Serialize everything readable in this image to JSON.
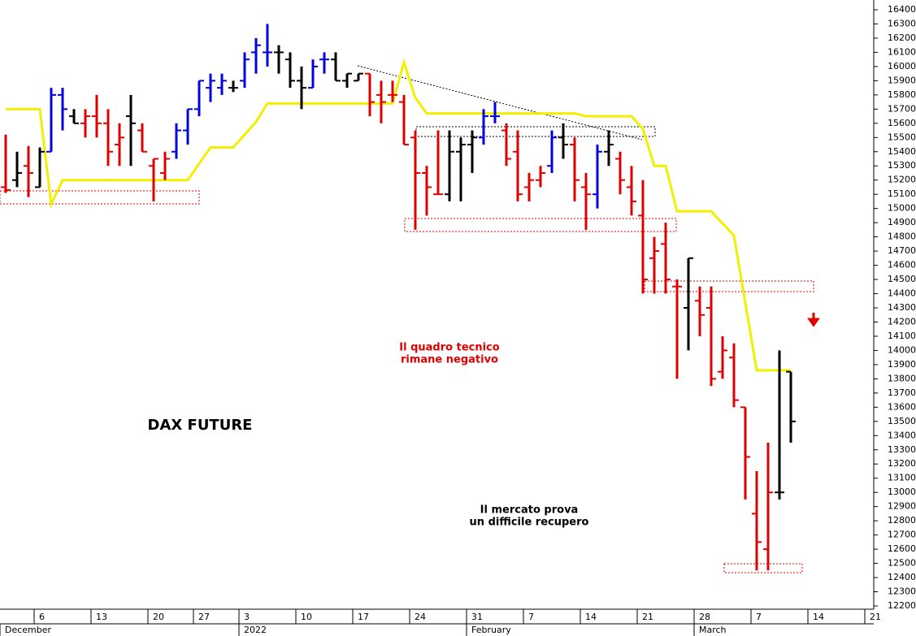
{
  "chart_data": {
    "type": "ohlc",
    "title": "DAX FUTURE",
    "annotations": [
      [
        "Il quadro tecnico",
        "rimane negativo"
      ],
      [
        "Il mercato prova",
        "un difficile recupero"
      ]
    ],
    "x": [
      0,
      1,
      2,
      3,
      4,
      5,
      6,
      7,
      8,
      9,
      10,
      11,
      12,
      13,
      14,
      15,
      16,
      17,
      18,
      19,
      20,
      21,
      22,
      23,
      24,
      25,
      26,
      27,
      28,
      29,
      30,
      31,
      32,
      33,
      34,
      35,
      36,
      37,
      38,
      39,
      40,
      41,
      42,
      43,
      44,
      45,
      46,
      47,
      48,
      49,
      50,
      51,
      52,
      53,
      54,
      55,
      56,
      57,
      58,
      59,
      60,
      61,
      62,
      63,
      64,
      65,
      66,
      67,
      68,
      69
    ],
    "open": [
      15150,
      15200,
      15300,
      15150,
      15400,
      15800,
      15650,
      15600,
      15650,
      15600,
      15450,
      15650,
      15550,
      15300,
      15250,
      15400,
      15550,
      15700,
      15850,
      15850,
      15850,
      15900,
      16100,
      16100,
      16100,
      16050,
      15900,
      15850,
      16050,
      16050,
      15900,
      15900,
      15950,
      15800,
      15800,
      15750,
      15500,
      15250,
      15100,
      15100,
      15400,
      15450,
      15500,
      15650,
      15550,
      15400,
      15150,
      15200,
      15300,
      15500,
      15450,
      15150,
      15100,
      15400,
      15350,
      15150,
      14950,
      14650,
      14750,
      14450,
      14300,
      14350,
      14300,
      13850,
      13950,
      13600,
      12850,
      12600,
      13000,
      13850
    ],
    "high": [
      15520,
      15400,
      15440,
      15430,
      15850,
      15850,
      15700,
      15700,
      15800,
      15700,
      15600,
      15800,
      15600,
      15350,
      15400,
      15600,
      15700,
      15900,
      15950,
      15950,
      15900,
      16100,
      16200,
      16300,
      16150,
      16100,
      16000,
      16050,
      16100,
      16100,
      15950,
      15950,
      15950,
      15900,
      15900,
      15800,
      15550,
      15300,
      15550,
      15550,
      15500,
      15550,
      15700,
      15750,
      15600,
      15550,
      15250,
      15300,
      15550,
      15600,
      15500,
      15250,
      15450,
      15550,
      15400,
      15300,
      15200,
      14800,
      14900,
      14500,
      14650,
      14450,
      14450,
      14100,
      14050,
      13600,
      13150,
      13350,
      14000,
      13850
    ],
    "low": [
      15110,
      15150,
      15080,
      15150,
      15400,
      15550,
      15600,
      15500,
      15500,
      15300,
      15300,
      15300,
      15400,
      15050,
      15200,
      15350,
      15450,
      15650,
      15750,
      15800,
      15820,
      15850,
      15950,
      16000,
      15950,
      15850,
      15700,
      15850,
      15950,
      15900,
      15850,
      15900,
      15650,
      15600,
      15750,
      15450,
      14850,
      14950,
      15100,
      15050,
      15050,
      15250,
      15450,
      15600,
      15300,
      15050,
      15050,
      15150,
      15250,
      15350,
      15050,
      14850,
      15000,
      15300,
      15100,
      14950,
      14400,
      14400,
      14400,
      13800,
      14000,
      14100,
      13750,
      13800,
      13600,
      12950,
      12450,
      12450,
      12950,
      13350
    ],
    "close": [
      15130,
      15250,
      15250,
      15400,
      15800,
      15700,
      15600,
      15650,
      15600,
      15400,
      15500,
      15600,
      15400,
      15350,
      15350,
      15550,
      15700,
      15900,
      15900,
      15900,
      15850,
      16050,
      16150,
      16100,
      16100,
      15900,
      15850,
      16000,
      16050,
      15900,
      15950,
      15950,
      15750,
      15750,
      15800,
      15450,
      15250,
      15150,
      15100,
      15400,
      15450,
      15500,
      15650,
      15650,
      15350,
      15100,
      15200,
      15250,
      15500,
      15450,
      15200,
      15100,
      15400,
      15450,
      15200,
      15050,
      14500,
      14700,
      14500,
      14450,
      14650,
      14250,
      13800,
      14000,
      13650,
      13250,
      12650,
      13000,
      13000,
      13500
    ],
    "colors": [
      "#e00000",
      "#000000",
      "#e00000",
      "#000000",
      "#0000e0",
      "#0000e0",
      "#000000",
      "#e00000",
      "#e00000",
      "#e00000",
      "#e00000",
      "#000000",
      "#e00000",
      "#e00000",
      "#e00000",
      "#0000e0",
      "#0000e0",
      "#0000e0",
      "#0000e0",
      "#0000e0",
      "#000000",
      "#0000e0",
      "#0000e0",
      "#0000e0",
      "#000000",
      "#000000",
      "#000000",
      "#0000e0",
      "#0000e0",
      "#000000",
      "#000000",
      "#000000",
      "#e00000",
      "#e00000",
      "#e00000",
      "#e00000",
      "#e00000",
      "#e00000",
      "#e00000",
      "#000000",
      "#000000",
      "#000000",
      "#0000e0",
      "#0000e0",
      "#e00000",
      "#e00000",
      "#e00000",
      "#e00000",
      "#0000e0",
      "#000000",
      "#e00000",
      "#e00000",
      "#0000e0",
      "#000000",
      "#e00000",
      "#e00000",
      "#e00000",
      "#e00000",
      "#e00000",
      "#e00000",
      "#000000",
      "#e00000",
      "#e00000",
      "#e00000",
      "#e00000",
      "#e00000",
      "#e00000",
      "#e00000",
      "#000000",
      "#000000"
    ],
    "line": {
      "color": "#f2f000",
      "x": [
        0,
        3,
        4,
        5,
        16,
        18,
        20,
        22,
        23,
        34,
        35,
        36,
        37,
        50,
        51,
        55,
        56,
        57,
        58,
        59,
        62,
        64,
        66,
        69
      ],
      "values": [
        15700,
        15700,
        15030,
        15200,
        15200,
        15430,
        15430,
        15610,
        15740,
        15740,
        16030,
        15780,
        15670,
        15670,
        15650,
        15650,
        15560,
        15300,
        15300,
        14980,
        14980,
        14810,
        13860,
        13860
      ]
    },
    "xlim": [
      -0.5,
      76.5
    ],
    "xticks": [
      {
        "value": 3,
        "label": "6"
      },
      {
        "value": 8,
        "label": "13"
      },
      {
        "value": 13,
        "label": "20"
      },
      {
        "value": 17,
        "label": "27"
      },
      {
        "value": 21,
        "label": "3"
      },
      {
        "value": 26,
        "label": "10"
      },
      {
        "value": 31,
        "label": "17"
      },
      {
        "value": 36,
        "label": "24"
      },
      {
        "value": 41,
        "label": "31"
      },
      {
        "value": 46,
        "label": "7"
      },
      {
        "value": 51,
        "label": "14"
      },
      {
        "value": 56,
        "label": "21"
      },
      {
        "value": 61,
        "label": "28"
      },
      {
        "value": 66,
        "label": "7"
      },
      {
        "value": 71,
        "label": "14"
      },
      {
        "value": 76,
        "label": "21"
      }
    ],
    "month_labels": [
      {
        "value": 0,
        "label": "December"
      },
      {
        "value": 21,
        "label": "2022"
      },
      {
        "value": 41,
        "label": "February"
      },
      {
        "value": 61,
        "label": "March"
      }
    ],
    "ylim": [
      12200,
      16400
    ],
    "yticks": [
      12200,
      12300,
      12400,
      12500,
      12600,
      12700,
      12800,
      12900,
      13000,
      13100,
      13200,
      13300,
      13400,
      13500,
      13600,
      13700,
      13800,
      13900,
      14000,
      14100,
      14200,
      14300,
      14400,
      14500,
      14600,
      14700,
      14800,
      14900,
      15000,
      15100,
      15200,
      15300,
      15400,
      15500,
      15600,
      15700,
      15800,
      15900,
      16000,
      16100,
      16200,
      16300,
      16400
    ]
  }
}
